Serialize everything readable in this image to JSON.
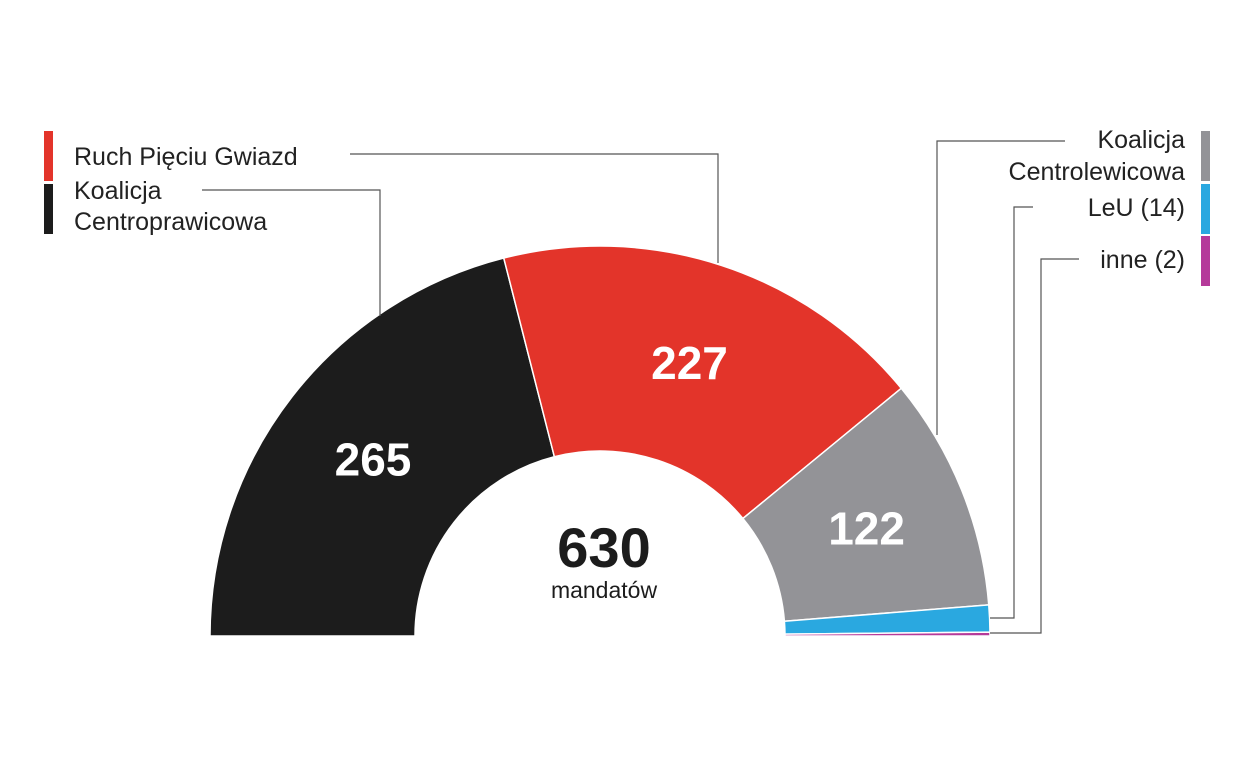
{
  "chart_data": {
    "type": "pie",
    "variant": "semicircle",
    "total": {
      "value": "630",
      "unit": "mandatów"
    },
    "series": [
      {
        "name": "Koalicja Centroprawicowa",
        "value": 265,
        "color": "#1c1c1c",
        "label": "265"
      },
      {
        "name": "Ruch Pięciu Gwiazd",
        "value": 227,
        "color": "#e3342a",
        "label": "227"
      },
      {
        "name": "Koalicja Centrolewicowa",
        "value": 122,
        "color": "#939397",
        "label": "122"
      },
      {
        "name": "LeU",
        "value": 14,
        "color": "#2aa8e0",
        "label": ""
      },
      {
        "name": "inne",
        "value": 2,
        "color": "#b53a9a",
        "label": ""
      }
    ],
    "legend": {
      "ruch": "Ruch Pięciu Gwiazd",
      "centroprawica_line1": "Koalicja",
      "centroprawica_line2": "Centroprawicowa",
      "centrolewica_line1": "Koalicja",
      "centrolewica_line2": "Centrolewicowa",
      "leu": "LeU (14)",
      "inne": "inne (2)"
    }
  }
}
